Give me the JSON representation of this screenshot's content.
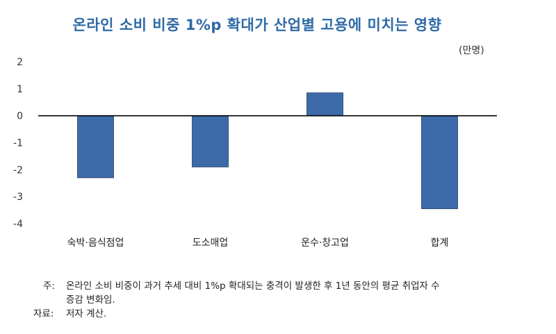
{
  "chart_data": {
    "type": "bar",
    "title": "온라인 소비 비중 1%p 확대가 산업별 고용에 미치는 영향",
    "unit": "(만명)",
    "categories": [
      "숙박·음식점업",
      "도소매업",
      "운수·창고업",
      "합계"
    ],
    "values": [
      -2.3,
      -1.9,
      0.85,
      -3.45
    ],
    "ylim": [
      -4,
      2
    ],
    "yticks": [
      "2",
      "1",
      "0",
      "-1",
      "-2",
      "-3",
      "-4"
    ],
    "bar_color": "#3d6aa8",
    "grid": false,
    "legend": "none"
  },
  "notes": {
    "note_label": "주:",
    "note_line1": "온라인 소비 비중이 과거 추세 대비 1%p 확대되는 충격이 발생한 후 1년 동안의 평균 취업자 수",
    "note_line2": "증감 변화임.",
    "source_label": "자료:",
    "source_text": "저자 계산."
  }
}
